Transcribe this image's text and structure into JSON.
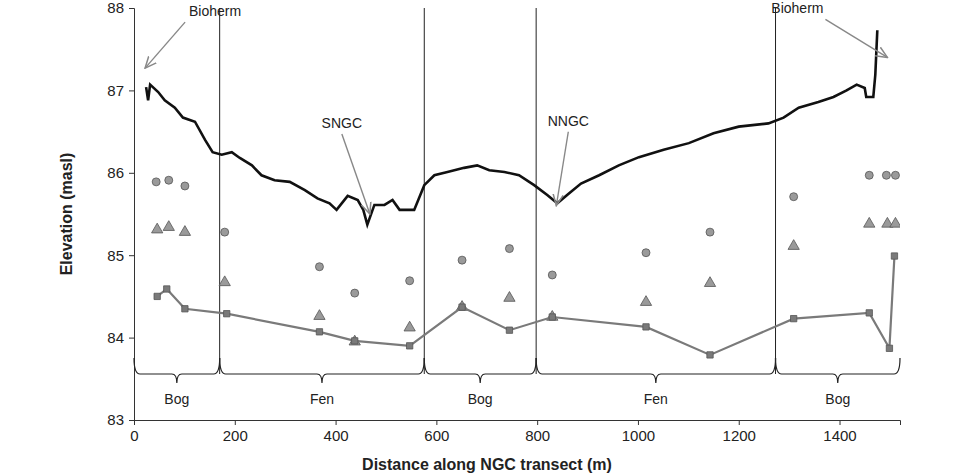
{
  "chart_data": {
    "type": "line",
    "x_label": "Distance along NGC transect (m)",
    "y_label": "Elevation (masl)",
    "xlim": [
      0,
      1520
    ],
    "xticks": [
      0,
      200,
      400,
      600,
      800,
      1000,
      1200,
      1400
    ],
    "ylim": [
      83,
      88
    ],
    "yticks": [
      83,
      84,
      85,
      86,
      87,
      88
    ],
    "grid": false,
    "series": [
      {
        "type": "line",
        "color": "#111111",
        "line_style": "solid",
        "x": [
          24,
          28,
          32,
          48,
          61,
          81,
          97,
          121,
          141,
          156,
          174,
          194,
          210,
          234,
          253,
          279,
          309,
          339,
          364,
          388,
          402,
          424,
          444,
          455,
          463,
          477,
          497,
          513,
          527,
          556,
          576,
          596,
          622,
          655,
          681,
          705,
          735,
          764,
          794,
          820,
          840,
          863,
          887,
          923,
          962,
          1002,
          1051,
          1101,
          1150,
          1200,
          1259,
          1289,
          1319,
          1358,
          1388,
          1414,
          1434,
          1450,
          1453,
          1467,
          1471,
          1475
        ],
        "values": [
          87.04,
          86.88,
          87.07,
          86.98,
          86.88,
          86.79,
          86.67,
          86.62,
          86.4,
          86.25,
          86.22,
          86.25,
          86.18,
          86.09,
          85.97,
          85.91,
          85.89,
          85.79,
          85.69,
          85.63,
          85.55,
          85.72,
          85.67,
          85.55,
          85.37,
          85.61,
          85.61,
          85.67,
          85.55,
          85.55,
          85.85,
          85.97,
          86.01,
          86.06,
          86.09,
          86.03,
          86.01,
          85.97,
          85.85,
          85.73,
          85.63,
          85.75,
          85.87,
          85.97,
          86.09,
          86.19,
          86.28,
          86.36,
          86.48,
          86.56,
          86.6,
          86.67,
          86.79,
          86.86,
          86.92,
          87.0,
          87.07,
          87.03,
          86.92,
          86.92,
          87.19,
          87.73
        ]
      },
      {
        "type": "scatter",
        "marker": "circle",
        "color": "#9a9a9a",
        "x": [
          44,
          69,
          101,
          180,
          368,
          438,
          547,
          651,
          745,
          830,
          1016,
          1143,
          1309,
          1459,
          1493,
          1511
        ],
        "values": [
          85.89,
          85.91,
          85.84,
          85.28,
          84.86,
          84.54,
          84.69,
          84.94,
          85.08,
          84.76,
          85.03,
          85.28,
          85.71,
          85.97,
          85.97,
          85.97
        ]
      },
      {
        "type": "scatter",
        "marker": "triangle",
        "color": "#9a9a9a",
        "x": [
          46,
          69,
          101,
          180,
          368,
          438,
          547,
          651,
          745,
          830,
          1016,
          1143,
          1309,
          1459,
          1495,
          1511
        ],
        "values": [
          85.31,
          85.34,
          85.28,
          84.67,
          84.26,
          83.95,
          84.12,
          84.37,
          84.48,
          84.25,
          84.43,
          84.66,
          85.11,
          85.38,
          85.38,
          85.38
        ]
      },
      {
        "type": "line",
        "marker": "square",
        "color": "#7a7a7a",
        "line_style": "solid",
        "x": [
          46,
          65,
          101,
          184,
          368,
          438,
          547,
          651,
          745,
          830,
          1016,
          1143,
          1309,
          1459,
          1499,
          1509
        ],
        "values": [
          84.5,
          84.59,
          84.35,
          84.29,
          84.07,
          83.96,
          83.9,
          84.37,
          84.09,
          84.25,
          84.13,
          83.79,
          84.23,
          84.3,
          83.87,
          84.99
        ]
      }
    ],
    "boundaries": [
      170,
      576,
      798,
      1273
    ],
    "sections": [
      {
        "label": "Bog",
        "start": 0,
        "end": 170
      },
      {
        "label": "Fen",
        "start": 170,
        "end": 576
      },
      {
        "label": "Bog",
        "start": 576,
        "end": 798
      },
      {
        "label": "Fen",
        "start": 798,
        "end": 1273
      },
      {
        "label": "Bog",
        "start": 1273,
        "end": 1520
      }
    ],
    "annotations": [
      {
        "text": "Bioherm",
        "x": 22,
        "y": 87.27
      },
      {
        "text": "SNGC",
        "x": 468,
        "y": 85.5
      },
      {
        "text": "NNGC",
        "x": 838,
        "y": 85.6
      },
      {
        "text": "Bioherm",
        "x": 1495,
        "y": 87.4
      }
    ]
  }
}
